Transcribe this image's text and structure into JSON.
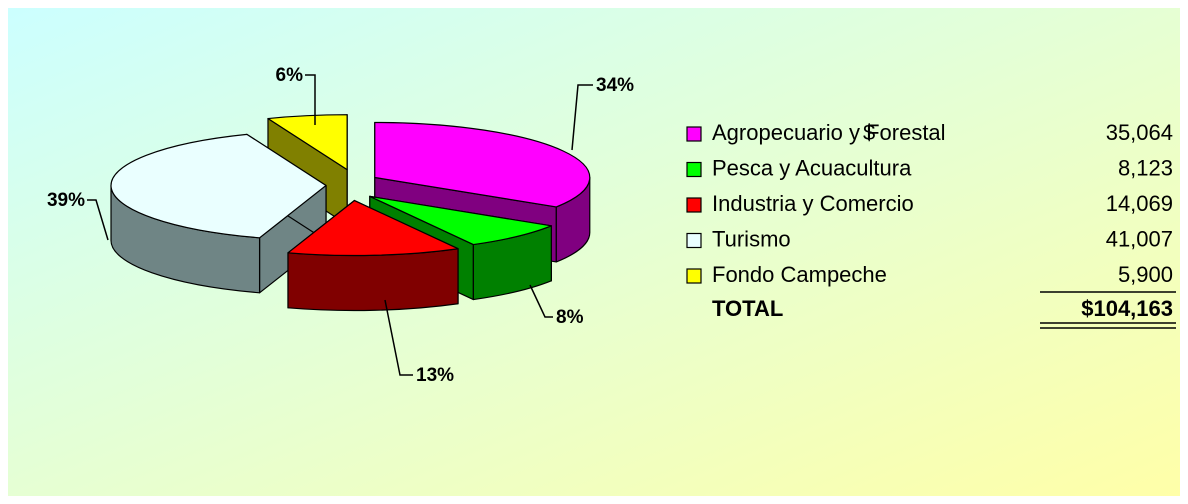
{
  "chart_data": {
    "type": "pie",
    "categories": [
      "Agropecuario y Forestal",
      "Pesca y Acuacultura",
      "Industria y Comercio",
      "Turismo",
      "Fondo Campeche"
    ],
    "values": [
      34,
      8,
      13,
      39,
      6
    ],
    "value_labels": [
      "34%",
      "8%",
      "13%",
      "39%",
      "6%"
    ],
    "colors": [
      "#ff00ff",
      "#00ff00",
      "#ff0000",
      "#eaffff",
      "#ffff00"
    ]
  },
  "table": {
    "currency": "$",
    "amounts": [
      "35,064",
      "8,123",
      "14,069",
      "41,007",
      "5,900"
    ],
    "total_label": "TOTAL",
    "total": "$104,163"
  }
}
